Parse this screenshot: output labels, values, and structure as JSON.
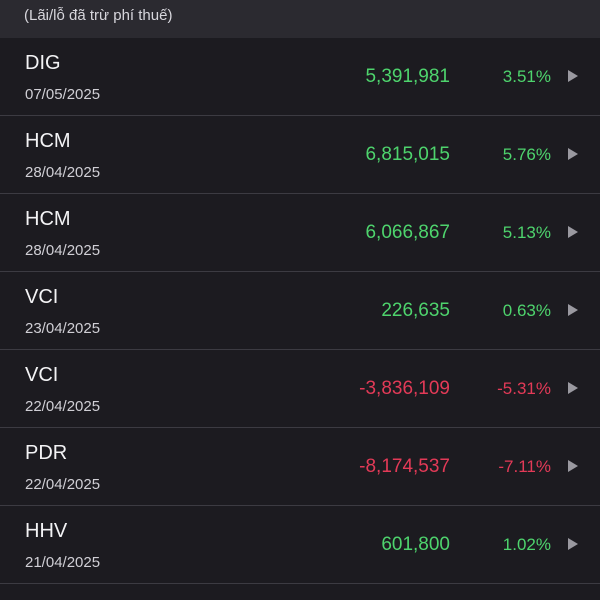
{
  "header": {
    "note": "(Lãi/lỗ đã trừ phí thuế)"
  },
  "colors": {
    "gain": "#4ed46d",
    "loss": "#e33a57",
    "background": "#1c1b20",
    "header_background": "#2b2a30"
  },
  "trades": [
    {
      "symbol": "DIG",
      "date": "07/05/2025",
      "amount": "5,391,981",
      "percent": "3.51%",
      "direction": "gain",
      "icon": "chevron-right-icon"
    },
    {
      "symbol": "HCM",
      "date": "28/04/2025",
      "amount": "6,815,015",
      "percent": "5.76%",
      "direction": "gain",
      "icon": "chevron-right-icon"
    },
    {
      "symbol": "HCM",
      "date": "28/04/2025",
      "amount": "6,066,867",
      "percent": "5.13%",
      "direction": "gain",
      "icon": "chevron-right-icon"
    },
    {
      "symbol": "VCI",
      "date": "23/04/2025",
      "amount": "226,635",
      "percent": "0.63%",
      "direction": "gain",
      "icon": "chevron-right-icon"
    },
    {
      "symbol": "VCI",
      "date": "22/04/2025",
      "amount": "-3,836,109",
      "percent": "-5.31%",
      "direction": "loss",
      "icon": "chevron-right-icon"
    },
    {
      "symbol": "PDR",
      "date": "22/04/2025",
      "amount": "-8,174,537",
      "percent": "-7.11%",
      "direction": "loss",
      "icon": "chevron-right-icon"
    },
    {
      "symbol": "HHV",
      "date": "21/04/2025",
      "amount": "601,800",
      "percent": "1.02%",
      "direction": "gain",
      "icon": "chevron-right-icon"
    }
  ]
}
